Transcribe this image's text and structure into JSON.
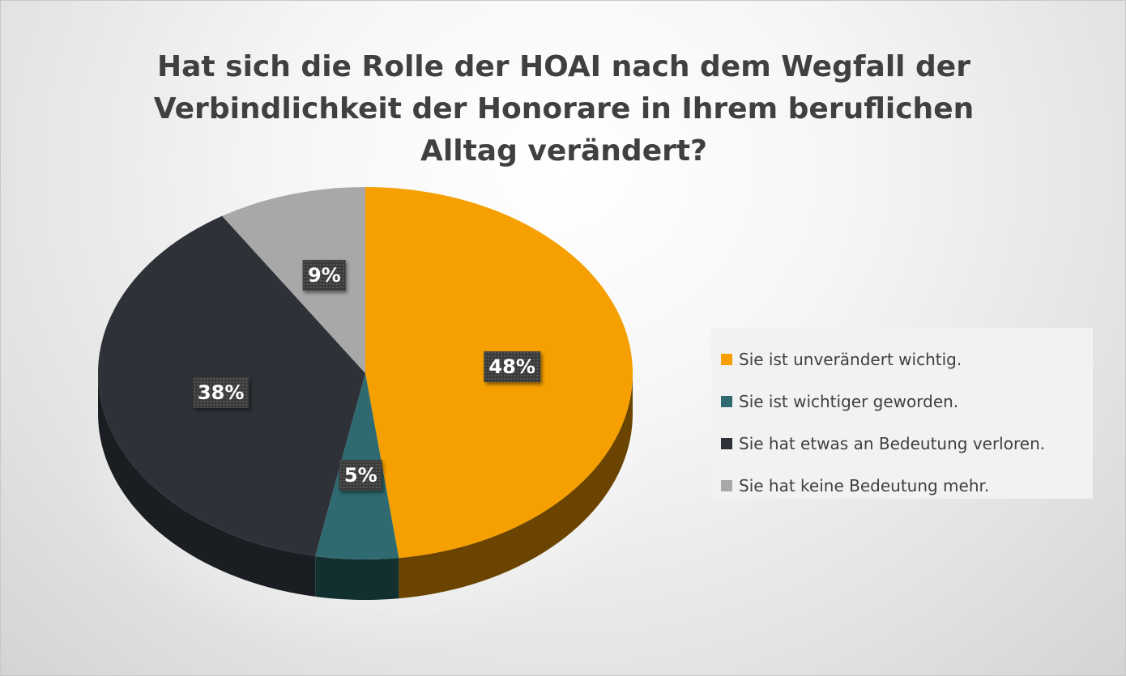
{
  "chart_data": {
    "type": "pie",
    "title": "Hat sich die Rolle der HOAI nach dem Wegfall der Verbindlichkeit der Honorare in Ihrem beruflichen Alltag verändert?",
    "categories": [
      "Sie ist unverändert wichtig.",
      "Sie ist wichtiger geworden.",
      "Sie hat etwas an Bedeutung verloren.",
      "Sie hat keine Bedeutung mehr."
    ],
    "values": [
      48,
      5,
      38,
      9
    ],
    "labels": [
      "48%",
      "5%",
      "38%",
      "9%"
    ],
    "colors": [
      "#F5A000",
      "#2E6A70",
      "#2E3238",
      "#A8A8A8"
    ],
    "side_colors": [
      "#6A4400",
      "#12302F",
      "#1A1D21",
      "#5C5C5C"
    ],
    "legend_position": "right",
    "style": "3d"
  }
}
